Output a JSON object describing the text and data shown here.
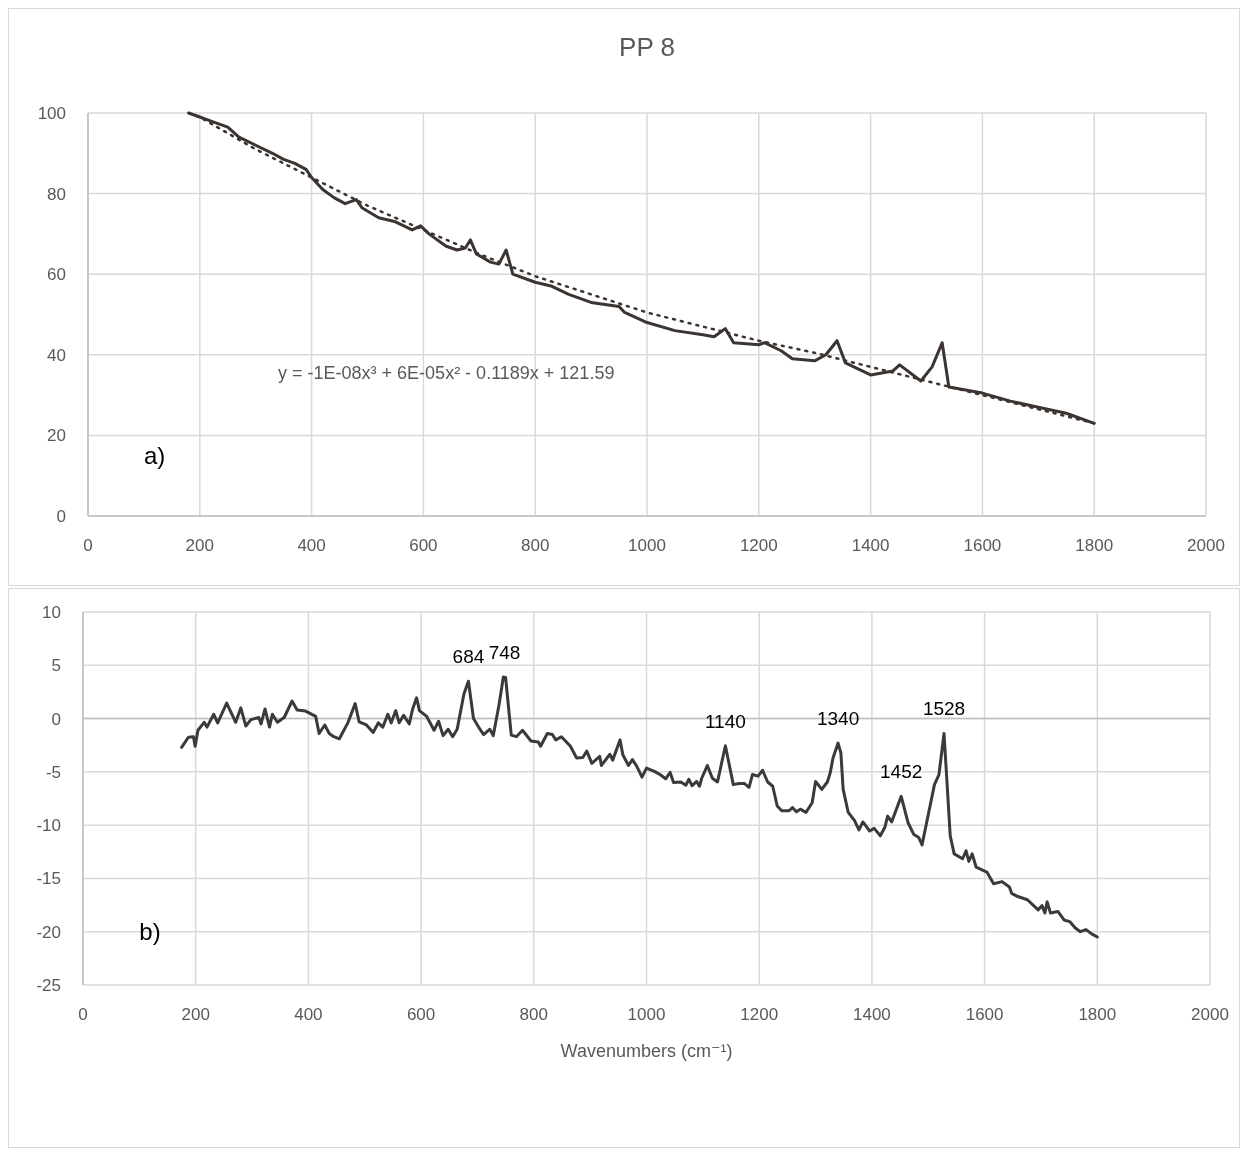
{
  "chart_data": [
    {
      "type": "line",
      "title": "PP 8",
      "xlim": [
        0,
        2000
      ],
      "ylim": [
        0,
        100
      ],
      "xticks": [
        0,
        200,
        400,
        600,
        800,
        1000,
        1200,
        1400,
        1600,
        1800,
        2000
      ],
      "yticks": [
        0,
        20,
        40,
        60,
        80,
        100
      ],
      "grid": true,
      "annotations": [
        "a)",
        "y = -1E-08x³ + 6E-05x² - 0.1189x + 121.59"
      ],
      "series": [
        {
          "color": "#3b3431",
          "line_style": "solid",
          "x": [
            180,
            200,
            220,
            250,
            270,
            300,
            330,
            350,
            370,
            390,
            400,
            420,
            440,
            460,
            480,
            490,
            520,
            550,
            580,
            595,
            610,
            640,
            660,
            675,
            684,
            695,
            720,
            735,
            748,
            760,
            800,
            830,
            860,
            900,
            950,
            960,
            1000,
            1050,
            1100,
            1120,
            1140,
            1155,
            1200,
            1210,
            1240,
            1260,
            1300,
            1320,
            1340,
            1355,
            1400,
            1440,
            1452,
            1490,
            1510,
            1528,
            1540,
            1600,
            1650,
            1700,
            1750,
            1800
          ],
          "values": [
            100,
            99,
            98,
            96.5,
            94,
            92,
            90,
            88.5,
            87.5,
            86,
            84,
            81,
            79,
            77.5,
            78.5,
            76.5,
            74,
            73,
            71,
            72,
            70,
            67,
            66,
            66.5,
            68.5,
            65,
            63,
            62.5,
            66,
            60,
            58,
            57,
            55,
            53,
            52,
            50.5,
            48,
            46,
            45,
            44.5,
            46.5,
            43,
            42.5,
            43,
            41,
            39,
            38.5,
            40,
            43.5,
            38,
            35,
            36,
            37.5,
            33.5,
            37,
            43,
            32,
            30.5,
            28.5,
            27,
            25.5,
            23
          ]
        },
        {
          "type": "line",
          "color": "#3b3431",
          "line_style": "dotted",
          "x": [
            180,
            200,
            300,
            400,
            500,
            600,
            700,
            800,
            900,
            1000,
            1100,
            1200,
            1300,
            1400,
            1500,
            1600,
            1700,
            1800
          ],
          "values": [
            100,
            99,
            91,
            84,
            77,
            71,
            65,
            59.5,
            55,
            50.5,
            47,
            43.5,
            40.5,
            37,
            33.5,
            30,
            26.5,
            23
          ]
        }
      ]
    },
    {
      "type": "line",
      "xlabel": "Wavenumbers (cm⁻¹)",
      "xlim": [
        0,
        2000
      ],
      "ylim": [
        -25,
        10
      ],
      "xticks": [
        0,
        200,
        400,
        600,
        800,
        1000,
        1200,
        1400,
        1600,
        1800,
        2000
      ],
      "yticks": [
        -25,
        -20,
        -15,
        -10,
        -5,
        0,
        5,
        10
      ],
      "grid": true,
      "annotations": [
        "b)",
        {
          "text": "684",
          "x": 684,
          "y": 3.5
        },
        {
          "text": "748",
          "x": 748,
          "y": 3.9
        },
        {
          "text": "1140",
          "x": 1140,
          "y": -2.55
        },
        {
          "text": "1340",
          "x": 1340,
          "y": -2.3
        },
        {
          "text": "1452",
          "x": 1452,
          "y": -7.3
        },
        {
          "text": "1528",
          "x": 1528,
          "y": -1.4
        }
      ],
      "series": [
        {
          "color": "#3a3a3a",
          "line_style": "solid",
          "x": [
            175,
            187,
            196,
            199,
            204,
            215,
            220,
            232,
            239,
            255,
            271,
            280,
            289,
            298,
            312,
            316,
            323,
            331,
            336,
            345,
            357,
            371,
            380,
            395,
            413,
            419,
            429,
            437,
            445,
            455,
            470,
            483,
            490,
            503,
            515,
            524,
            532,
            541,
            547,
            555,
            561,
            569,
            579,
            585,
            592,
            597,
            610,
            623,
            631,
            639,
            648,
            656,
            664,
            676,
            684,
            693,
            702,
            711,
            722,
            728,
            738,
            746,
            750,
            760,
            769,
            780,
            795,
            808,
            812,
            824,
            833,
            839,
            849,
            865,
            876,
            887,
            894,
            903,
            917,
            920,
            935,
            940,
            953,
            958,
            968,
            975,
            983,
            992,
            1000,
            1014,
            1024,
            1034,
            1042,
            1048,
            1061,
            1070,
            1075,
            1081,
            1089,
            1094,
            1098,
            1108,
            1117,
            1126,
            1140,
            1154,
            1164,
            1174,
            1182,
            1188,
            1198,
            1206,
            1215,
            1224,
            1232,
            1240,
            1253,
            1259,
            1266,
            1273,
            1283,
            1294,
            1300,
            1311,
            1321,
            1326,
            1331,
            1340,
            1345,
            1349,
            1358,
            1369,
            1377,
            1384,
            1396,
            1404,
            1415,
            1423,
            1428,
            1435,
            1452,
            1464,
            1474,
            1483,
            1489,
            1511,
            1519,
            1528,
            1539,
            1546,
            1561,
            1567,
            1572,
            1578,
            1585,
            1604,
            1616,
            1631,
            1644,
            1648,
            1659,
            1676,
            1695,
            1702,
            1707,
            1711,
            1717,
            1730,
            1741,
            1751,
            1761,
            1770,
            1780,
            1790,
            1800
          ],
          "values": [
            -2.7,
            -1.75,
            -1.7,
            -2.6,
            -1.1,
            -0.35,
            -0.8,
            0.4,
            -0.4,
            1.45,
            -0.35,
            1.0,
            -0.7,
            -0.1,
            0.1,
            -0.5,
            0.9,
            -0.8,
            0.4,
            -0.35,
            0.1,
            1.65,
            0.8,
            0.7,
            0.2,
            -1.4,
            -0.6,
            -1.4,
            -1.7,
            -1.9,
            -0.4,
            1.4,
            -0.3,
            -0.6,
            -1.3,
            -0.4,
            -0.8,
            0.4,
            -0.4,
            0.75,
            -0.4,
            0.3,
            -0.5,
            0.9,
            1.95,
            0.75,
            0.2,
            -1.1,
            -0.25,
            -1.6,
            -1.0,
            -1.7,
            -1.0,
            2.3,
            3.5,
            0.0,
            -0.8,
            -1.5,
            -1.0,
            -1.6,
            1.2,
            3.9,
            3.85,
            -1.55,
            -1.7,
            -1.1,
            -2.1,
            -2.2,
            -2.6,
            -1.4,
            -1.5,
            -2.0,
            -1.7,
            -2.6,
            -3.7,
            -3.65,
            -3.05,
            -4.2,
            -3.55,
            -4.4,
            -3.35,
            -3.9,
            -2.0,
            -3.4,
            -4.4,
            -3.85,
            -4.5,
            -5.5,
            -4.65,
            -4.95,
            -5.25,
            -5.65,
            -5.05,
            -6.0,
            -5.95,
            -6.25,
            -5.7,
            -6.3,
            -5.9,
            -6.35,
            -5.6,
            -4.4,
            -5.6,
            -5.95,
            -2.55,
            -6.2,
            -6.1,
            -6.1,
            -6.45,
            -5.25,
            -5.4,
            -4.85,
            -5.95,
            -6.35,
            -8.2,
            -8.65,
            -8.65,
            -8.35,
            -8.75,
            -8.5,
            -8.8,
            -7.9,
            -5.9,
            -6.65,
            -5.95,
            -5.1,
            -3.7,
            -2.3,
            -3.25,
            -6.65,
            -8.8,
            -9.55,
            -10.45,
            -9.7,
            -10.55,
            -10.3,
            -11.0,
            -10.2,
            -9.15,
            -9.7,
            -7.3,
            -9.75,
            -10.85,
            -11.15,
            -11.85,
            -6.2,
            -5.25,
            -1.4,
            -11.0,
            -12.7,
            -13.15,
            -12.4,
            -13.4,
            -12.7,
            -13.95,
            -14.4,
            -15.5,
            -15.3,
            -15.8,
            -16.4,
            -16.7,
            -17.0,
            -17.95,
            -17.55,
            -18.25,
            -17.2,
            -18.25,
            -18.1,
            -18.9,
            -19.05,
            -19.65,
            -20.0,
            -19.8,
            -20.2,
            -20.5
          ]
        }
      ]
    }
  ]
}
